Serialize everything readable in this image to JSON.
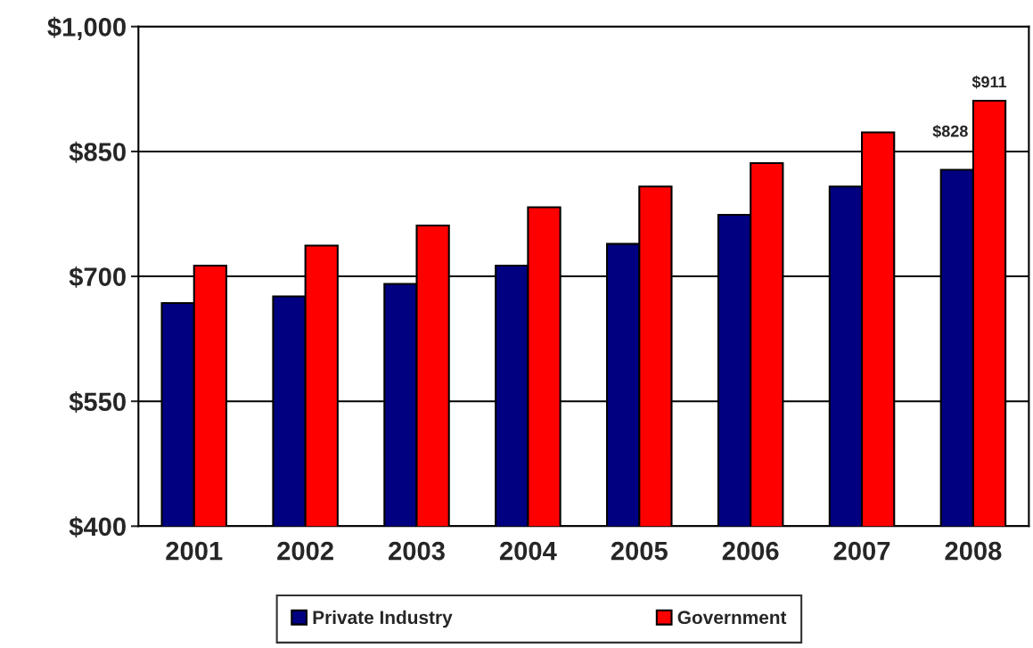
{
  "chart_data": {
    "type": "bar",
    "categories": [
      "2001",
      "2002",
      "2003",
      "2004",
      "2005",
      "2006",
      "2007",
      "2008"
    ],
    "series": [
      {
        "name": "Private Industry",
        "color": "#000080",
        "values": [
          668,
          676,
          691,
          713,
          739,
          774,
          808,
          828
        ],
        "value_labels": [
          null,
          null,
          null,
          null,
          null,
          null,
          null,
          "$828"
        ]
      },
      {
        "name": "Government",
        "color": "#ff0000",
        "values": [
          713,
          737,
          761,
          783,
          808,
          836,
          873,
          911
        ],
        "value_labels": [
          null,
          null,
          null,
          null,
          null,
          null,
          null,
          "$911"
        ]
      }
    ],
    "ylim": [
      400,
      1000
    ],
    "yticks": [
      {
        "value": 400,
        "label": "$400"
      },
      {
        "value": 550,
        "label": "$550"
      },
      {
        "value": 700,
        "label": "$700"
      },
      {
        "value": 850,
        "label": "$850"
      },
      {
        "value": 1000,
        "label": "$1,000"
      }
    ],
    "grid": "y",
    "legend": "bottom"
  }
}
